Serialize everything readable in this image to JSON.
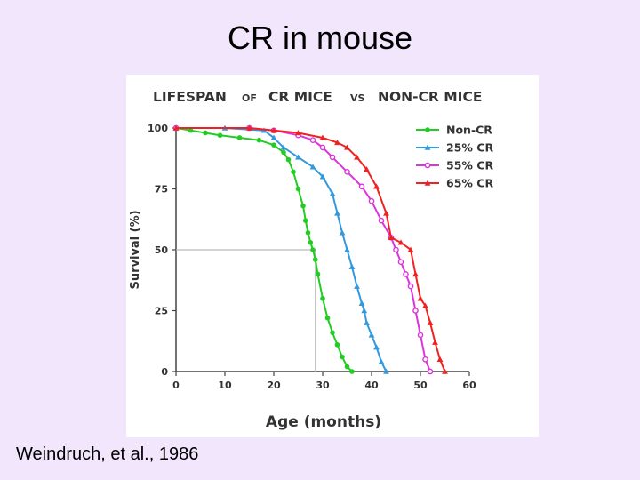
{
  "slide": {
    "title": "CR in mouse",
    "citation": "Weindruch, et al., 1986"
  },
  "chart_data": {
    "type": "line",
    "title": "LIFESPAN OF CR MICE VS NON-CR MICE",
    "title_parts": [
      "LIFESPAN",
      "OF",
      "CR MICE",
      "VS",
      "NON-CR MICE"
    ],
    "xlabel": "Age (months)",
    "ylabel": "Survival (%)",
    "xlim": [
      0,
      60
    ],
    "ylim": [
      0,
      100
    ],
    "xticks": [
      0,
      10,
      20,
      30,
      40,
      50,
      60
    ],
    "yticks": [
      0,
      25,
      50,
      75,
      100
    ],
    "grid": false,
    "legend_position": "top-right",
    "median_guide": {
      "x": 28.5,
      "y": 50
    },
    "series": [
      {
        "name": "Non-CR",
        "color": "#22cc22",
        "marker": "circle",
        "x": [
          0,
          3,
          6,
          9,
          13,
          17,
          20,
          22,
          23,
          24,
          25,
          26,
          26.5,
          27,
          27.5,
          28,
          28.5,
          29,
          30,
          31,
          32,
          33,
          34,
          35,
          36
        ],
        "y": [
          100,
          99,
          98,
          97,
          96,
          95,
          93,
          90,
          87,
          82,
          75,
          68,
          62,
          57,
          53,
          50,
          46,
          40,
          30,
          22,
          16,
          11,
          6,
          2,
          0
        ]
      },
      {
        "name": "25% CR",
        "color": "#3399dd",
        "marker": "triangle",
        "x": [
          0,
          10,
          18,
          20,
          22,
          25,
          28,
          30,
          32,
          33,
          34,
          35,
          36,
          37,
          38,
          38.5,
          39,
          40,
          41,
          42,
          43
        ],
        "y": [
          100,
          100,
          99,
          96,
          92,
          88,
          84,
          80,
          73,
          65,
          57,
          50,
          43,
          35,
          28,
          25,
          20,
          15,
          10,
          4,
          0
        ]
      },
      {
        "name": "55% CR",
        "color": "#dd33dd",
        "marker": "circle-open",
        "x": [
          0,
          15,
          20,
          25,
          28,
          30,
          32,
          35,
          38,
          40,
          42,
          44,
          45,
          46,
          47,
          48,
          49,
          50,
          51,
          52
        ],
        "y": [
          100,
          100,
          99,
          97,
          95,
          92,
          88,
          82,
          76,
          70,
          62,
          55,
          50,
          45,
          40,
          35,
          25,
          15,
          5,
          0
        ]
      },
      {
        "name": "65% CR",
        "color": "#ee2222",
        "marker": "triangle",
        "x": [
          0,
          15,
          20,
          25,
          30,
          33,
          35,
          37,
          39,
          41,
          43,
          44,
          46,
          48,
          49,
          50,
          51,
          52,
          53,
          54,
          55
        ],
        "y": [
          100,
          100,
          99,
          98,
          96,
          94,
          92,
          88,
          83,
          76,
          65,
          55,
          53,
          50,
          40,
          30,
          27,
          20,
          12,
          5,
          0
        ]
      }
    ]
  }
}
